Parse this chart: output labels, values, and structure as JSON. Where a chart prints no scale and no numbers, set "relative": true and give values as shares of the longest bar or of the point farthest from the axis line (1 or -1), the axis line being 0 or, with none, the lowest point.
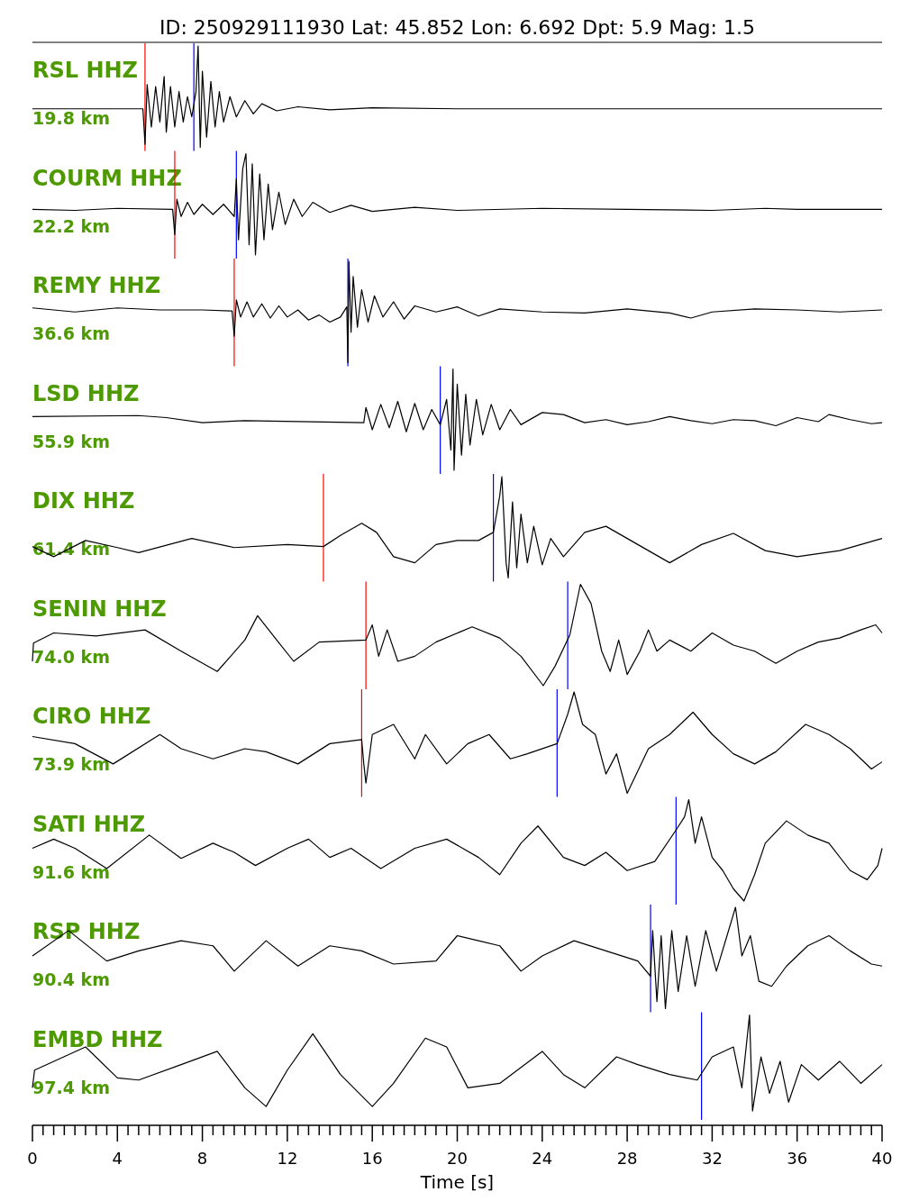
{
  "chart_data": [
    {
      "type": "line",
      "title": "ID: 250929111930 Lat:  45.852 Lon:   6.692 Dpt:     5.9 Mag:   1.5",
      "relative": true,
      "xlim": [
        0,
        40
      ],
      "annotations": [
        "19.8 km"
      ],
      "ref_lines": [
        {
          "axis": "x",
          "value": 5.3,
          "color": "#ff0000"
        },
        {
          "axis": "x",
          "value": 7.6,
          "color": "#0000ff"
        }
      ],
      "series": [
        {
          "name": "RSL HHZ",
          "color": "#000000",
          "x": [
            0,
            5.2,
            5.3,
            5.4,
            5.6,
            5.8,
            6.0,
            6.2,
            6.3,
            6.5,
            6.7,
            6.9,
            7.1,
            7.3,
            7.5,
            7.7,
            7.8,
            7.9,
            8.0,
            8.2,
            8.4,
            8.6,
            8.8,
            9.0,
            9.3,
            9.6,
            10.0,
            10.4,
            10.8,
            11.5,
            12.5,
            14,
            16,
            20,
            40
          ],
          "values": [
            0.38,
            0.38,
            0.03,
            0.62,
            0.2,
            0.6,
            0.25,
            0.7,
            0.15,
            0.6,
            0.2,
            0.55,
            0.25,
            0.5,
            0.3,
            0.55,
            1.0,
            0.0,
            0.75,
            0.1,
            0.65,
            0.2,
            0.55,
            0.25,
            0.5,
            0.3,
            0.46,
            0.33,
            0.43,
            0.36,
            0.4,
            0.37,
            0.39,
            0.38,
            0.38
          ]
        }
      ]
    },
    {
      "type": "line",
      "relative": true,
      "xlim": [
        0,
        40
      ],
      "annotations": [
        "22.2 km"
      ],
      "ref_lines": [
        {
          "axis": "x",
          "value": 6.7,
          "color": "#ff0000"
        },
        {
          "axis": "x",
          "value": 9.6,
          "color": "#0000ff"
        }
      ],
      "series": [
        {
          "name": "COURM HHZ",
          "color": "#000000",
          "x": [
            0,
            2,
            4,
            6.6,
            6.7,
            6.8,
            7.0,
            7.3,
            7.6,
            8.0,
            8.5,
            9.0,
            9.5,
            9.6,
            9.7,
            9.9,
            10.05,
            10.2,
            10.35,
            10.5,
            10.7,
            10.9,
            11.1,
            11.3,
            11.6,
            11.9,
            12.3,
            12.7,
            13.2,
            14,
            15,
            16,
            18,
            20,
            24,
            28,
            32,
            34.5,
            36,
            40
          ],
          "values": [
            0.45,
            0.44,
            0.46,
            0.45,
            0.2,
            0.55,
            0.38,
            0.52,
            0.4,
            0.5,
            0.4,
            0.5,
            0.38,
            0.75,
            0.15,
            0.85,
            1.0,
            0.1,
            0.9,
            0.0,
            0.8,
            0.15,
            0.7,
            0.25,
            0.62,
            0.3,
            0.55,
            0.38,
            0.52,
            0.42,
            0.49,
            0.43,
            0.47,
            0.44,
            0.46,
            0.45,
            0.44,
            0.46,
            0.45,
            0.45
          ]
        }
      ]
    },
    {
      "type": "line",
      "relative": true,
      "xlim": [
        0,
        40
      ],
      "annotations": [
        "36.6 km"
      ],
      "ref_lines": [
        {
          "axis": "x",
          "value": 9.5,
          "color": "#ff0000"
        },
        {
          "axis": "x",
          "value": 14.85,
          "color": "#0000ff"
        }
      ],
      "series": [
        {
          "name": "REMY HHZ",
          "color": "#000000",
          "x": [
            0,
            2,
            4,
            6,
            8,
            9.4,
            9.5,
            9.6,
            9.8,
            10.1,
            10.4,
            10.8,
            11.2,
            11.6,
            12,
            12.5,
            13,
            13.5,
            14,
            14.5,
            14.8,
            14.85,
            14.9,
            15.0,
            15.1,
            15.3,
            15.5,
            15.8,
            16.1,
            16.5,
            17,
            17.5,
            18,
            19,
            20,
            21,
            22,
            24,
            26,
            28,
            30,
            31,
            32,
            34,
            36,
            38,
            40
          ],
          "values": [
            0.54,
            0.5,
            0.54,
            0.52,
            0.52,
            0.51,
            0.26,
            0.62,
            0.45,
            0.6,
            0.45,
            0.58,
            0.44,
            0.56,
            0.45,
            0.52,
            0.42,
            0.47,
            0.4,
            0.45,
            0.55,
            0.0,
            1.0,
            0.3,
            0.85,
            0.35,
            0.72,
            0.4,
            0.66,
            0.45,
            0.6,
            0.43,
            0.56,
            0.5,
            0.55,
            0.46,
            0.53,
            0.5,
            0.49,
            0.53,
            0.49,
            0.44,
            0.5,
            0.53,
            0.52,
            0.5,
            0.52
          ]
        }
      ]
    },
    {
      "type": "line",
      "relative": true,
      "xlim": [
        0,
        40
      ],
      "annotations": [
        "55.9 km"
      ],
      "ref_lines": [
        {
          "axis": "x",
          "value": 19.2,
          "color": "#0000ff"
        }
      ],
      "series": [
        {
          "name": "LSD HHZ",
          "color": "#000000",
          "x": [
            0,
            5,
            6.3,
            8,
            10,
            15.6,
            15.7,
            16,
            16.4,
            16.8,
            17.2,
            17.6,
            18,
            18.4,
            18.8,
            19.2,
            19.5,
            19.7,
            19.8,
            19.85,
            20,
            20.2,
            20.4,
            20.6,
            20.9,
            21.2,
            21.6,
            22,
            22.5,
            23,
            24,
            25,
            26,
            27,
            28,
            29,
            30,
            31,
            32,
            33,
            34,
            35,
            36,
            37,
            37.5,
            38.5,
            39.5,
            40
          ],
          "values": [
            0.53,
            0.54,
            0.52,
            0.47,
            0.49,
            0.47,
            0.62,
            0.4,
            0.65,
            0.42,
            0.68,
            0.38,
            0.66,
            0.4,
            0.6,
            0.45,
            0.7,
            0.2,
            1.0,
            0.0,
            0.85,
            0.15,
            0.75,
            0.25,
            0.7,
            0.35,
            0.65,
            0.4,
            0.6,
            0.45,
            0.57,
            0.55,
            0.47,
            0.5,
            0.45,
            0.48,
            0.53,
            0.49,
            0.46,
            0.5,
            0.49,
            0.44,
            0.52,
            0.48,
            0.55,
            0.5,
            0.46,
            0.47
          ]
        }
      ]
    },
    {
      "type": "line",
      "relative": true,
      "xlim": [
        0,
        40
      ],
      "annotations": [
        "61.4 km"
      ],
      "ref_lines": [
        {
          "axis": "x",
          "value": 13.7,
          "color": "#ff0000"
        },
        {
          "axis": "x",
          "value": 21.7,
          "color": "#0000ff"
        }
      ],
      "series": [
        {
          "name": "DIX HHZ",
          "color": "#000000",
          "x": [
            0,
            1,
            2.5,
            4,
            5,
            7.5,
            9.5,
            12,
            13.7,
            14.5,
            15.5,
            16.2,
            17,
            18,
            19,
            20,
            21,
            21.7,
            21.8,
            22.0,
            22.1,
            22.3,
            22.4,
            22.6,
            22.8,
            23.0,
            23.3,
            23.6,
            24,
            24.4,
            25,
            26,
            27,
            28.5,
            30,
            31.5,
            33,
            34.5,
            36,
            38,
            40
          ],
          "values": [
            0.31,
            0.21,
            0.37,
            0.3,
            0.25,
            0.39,
            0.3,
            0.33,
            0.31,
            0.42,
            0.54,
            0.45,
            0.21,
            0.15,
            0.33,
            0.37,
            0.37,
            0.45,
            0.57,
            0.81,
            1.0,
            0.15,
            0.0,
            0.75,
            0.1,
            0.63,
            0.15,
            0.51,
            0.13,
            0.39,
            0.21,
            0.45,
            0.51,
            0.33,
            0.15,
            0.33,
            0.44,
            0.27,
            0.21,
            0.27,
            0.39
          ]
        }
      ]
    },
    {
      "type": "line",
      "relative": true,
      "xlim": [
        0,
        40
      ],
      "annotations": [
        "74.0 km"
      ],
      "ref_lines": [
        {
          "axis": "x",
          "value": 15.7,
          "color": "#ff0000"
        },
        {
          "axis": "x",
          "value": 25.2,
          "color": "#0000ff"
        }
      ],
      "series": [
        {
          "name": "SENIN HHZ",
          "color": "#000000",
          "x": [
            0,
            0.05,
            1,
            3,
            5.3,
            7,
            8.7,
            10,
            10.6,
            11.5,
            12.3,
            13.5,
            15.7,
            16,
            16.3,
            16.7,
            17.2,
            18,
            19,
            20.7,
            22,
            23,
            24.05,
            24.6,
            25.3,
            25.8,
            26.3,
            26.8,
            27.2,
            27.6,
            28,
            28.6,
            29,
            29.4,
            30,
            31,
            32,
            33,
            34,
            35,
            36,
            37,
            38,
            39,
            39.7,
            40
          ],
          "values": [
            0.24,
            0.42,
            0.52,
            0.49,
            0.55,
            0.34,
            0.14,
            0.45,
            0.69,
            0.45,
            0.24,
            0.43,
            0.45,
            0.6,
            0.29,
            0.55,
            0.24,
            0.29,
            0.43,
            0.58,
            0.47,
            0.29,
            0.0,
            0.19,
            0.5,
            1.0,
            0.81,
            0.34,
            0.14,
            0.45,
            0.11,
            0.34,
            0.55,
            0.34,
            0.45,
            0.34,
            0.52,
            0.4,
            0.34,
            0.22,
            0.34,
            0.43,
            0.47,
            0.55,
            0.6,
            0.52
          ]
        }
      ]
    },
    {
      "type": "line",
      "relative": true,
      "xlim": [
        0,
        40
      ],
      "annotations": [
        "73.9 km"
      ],
      "ref_lines": [
        {
          "axis": "x",
          "value": 15.5,
          "color": "#ff0000"
        },
        {
          "axis": "x",
          "value": 24.7,
          "color": "#0000ff"
        }
      ],
      "series": [
        {
          "name": "CIRO HHZ",
          "color": "#000000",
          "x": [
            0,
            2,
            3.8,
            6,
            7,
            8.5,
            10,
            11,
            12.5,
            14,
            15.5,
            15.6,
            15.7,
            16,
            17,
            18,
            18.5,
            19.5,
            20.5,
            21.5,
            22.5,
            23.3,
            24.7,
            25.2,
            25.5,
            25.9,
            26.5,
            27,
            27.5,
            28.0,
            29,
            30,
            31.1,
            32,
            33,
            34,
            35,
            36.4,
            37.5,
            38.5,
            39.5,
            40
          ],
          "values": [
            0.56,
            0.49,
            0.29,
            0.58,
            0.44,
            0.34,
            0.44,
            0.41,
            0.29,
            0.49,
            0.53,
            0.29,
            0.1,
            0.58,
            0.68,
            0.34,
            0.58,
            0.29,
            0.49,
            0.58,
            0.34,
            0.39,
            0.49,
            0.78,
            1.0,
            0.68,
            0.58,
            0.19,
            0.39,
            0.0,
            0.44,
            0.58,
            0.8,
            0.58,
            0.39,
            0.29,
            0.41,
            0.68,
            0.58,
            0.44,
            0.24,
            0.31
          ]
        }
      ]
    },
    {
      "type": "line",
      "relative": true,
      "xlim": [
        0,
        40
      ],
      "annotations": [
        "91.6 km"
      ],
      "ref_lines": [
        {
          "axis": "x",
          "value": 30.3,
          "color": "#0000ff"
        }
      ],
      "series": [
        {
          "name": "SATI HHZ",
          "color": "#000000",
          "x": [
            0,
            1,
            2,
            3.5,
            5.5,
            7,
            8.5,
            9.5,
            10.5,
            12,
            13,
            14,
            15,
            16.4,
            18,
            19.5,
            21,
            22,
            23,
            23.8,
            25,
            26,
            27,
            28,
            29.3,
            30.3,
            30.7,
            30.9,
            31.2,
            31.5,
            32,
            32.5,
            33,
            33.5,
            34,
            34.5,
            35.5,
            36.5,
            37.5,
            38.5,
            39.3,
            39.8,
            40
          ],
          "values": [
            0.52,
            0.61,
            0.52,
            0.32,
            0.65,
            0.42,
            0.57,
            0.48,
            0.35,
            0.52,
            0.61,
            0.43,
            0.52,
            0.32,
            0.52,
            0.61,
            0.43,
            0.26,
            0.57,
            0.74,
            0.43,
            0.35,
            0.48,
            0.3,
            0.39,
            0.7,
            0.83,
            1.0,
            0.57,
            0.83,
            0.43,
            0.3,
            0.12,
            0.0,
            0.26,
            0.57,
            0.79,
            0.65,
            0.57,
            0.3,
            0.21,
            0.35,
            0.52
          ]
        }
      ]
    },
    {
      "type": "line",
      "relative": true,
      "xlim": [
        0,
        40
      ],
      "annotations": [
        "90.4 km"
      ],
      "ref_lines": [
        {
          "axis": "x",
          "value": 29.1,
          "color": "#0000ff"
        }
      ],
      "series": [
        {
          "name": "RSP HHZ",
          "color": "#000000",
          "x": [
            0,
            1.7,
            3.5,
            5,
            7,
            8.5,
            9.5,
            11,
            12.5,
            14,
            15.5,
            17,
            19,
            20,
            21,
            22,
            23,
            24,
            25.5,
            27,
            28.5,
            29.1,
            29.2,
            29.4,
            29.6,
            29.8,
            30.1,
            30.4,
            30.8,
            31.2,
            31.7,
            32.2,
            32.7,
            33.1,
            33.4,
            33.8,
            34.2,
            34.8,
            35.5,
            36.5,
            37.5,
            38.5,
            39.5,
            40
          ],
          "values": [
            0.52,
            0.77,
            0.47,
            0.57,
            0.67,
            0.62,
            0.37,
            0.67,
            0.42,
            0.62,
            0.57,
            0.44,
            0.47,
            0.72,
            0.67,
            0.62,
            0.37,
            0.52,
            0.67,
            0.57,
            0.47,
            0.32,
            0.77,
            0.07,
            0.72,
            0.0,
            0.77,
            0.17,
            0.72,
            0.22,
            0.77,
            0.37,
            0.72,
            1.0,
            0.52,
            0.72,
            0.27,
            0.22,
            0.42,
            0.62,
            0.72,
            0.57,
            0.44,
            0.42
          ]
        }
      ]
    },
    {
      "type": "line",
      "relative": true,
      "xlim": [
        0,
        40
      ],
      "xlabel": "Time [s]",
      "annotations": [
        "97.4 km"
      ],
      "xticks": [
        0,
        {
          "value": 0.5,
          "label": null
        },
        {
          "value": 1,
          "label": null
        },
        {
          "value": 1.5,
          "label": null
        },
        {
          "value": 2,
          "label": null
        },
        {
          "value": 2.5,
          "label": null
        },
        {
          "value": 3,
          "label": null
        },
        {
          "value": 3.5,
          "label": null
        },
        4,
        {
          "value": 4.5,
          "label": null
        },
        {
          "value": 5,
          "label": null
        },
        {
          "value": 5.5,
          "label": null
        },
        {
          "value": 6,
          "label": null
        },
        {
          "value": 6.5,
          "label": null
        },
        {
          "value": 7,
          "label": null
        },
        {
          "value": 7.5,
          "label": null
        },
        8,
        {
          "value": 8.5,
          "label": null
        },
        {
          "value": 9,
          "label": null
        },
        {
          "value": 9.5,
          "label": null
        },
        {
          "value": 10,
          "label": null
        },
        {
          "value": 10.5,
          "label": null
        },
        {
          "value": 11,
          "label": null
        },
        {
          "value": 11.5,
          "label": null
        },
        12,
        {
          "value": 12.5,
          "label": null
        },
        {
          "value": 13,
          "label": null
        },
        {
          "value": 13.5,
          "label": null
        },
        {
          "value": 14,
          "label": null
        },
        {
          "value": 14.5,
          "label": null
        },
        {
          "value": 15,
          "label": null
        },
        {
          "value": 15.5,
          "label": null
        },
        16,
        {
          "value": 16.5,
          "label": null
        },
        {
          "value": 17,
          "label": null
        },
        {
          "value": 17.5,
          "label": null
        },
        {
          "value": 18,
          "label": null
        },
        {
          "value": 18.5,
          "label": null
        },
        {
          "value": 19,
          "label": null
        },
        {
          "value": 19.5,
          "label": null
        },
        20,
        {
          "value": 20.5,
          "label": null
        },
        {
          "value": 21,
          "label": null
        },
        {
          "value": 21.5,
          "label": null
        },
        {
          "value": 22,
          "label": null
        },
        {
          "value": 22.5,
          "label": null
        },
        {
          "value": 23,
          "label": null
        },
        {
          "value": 23.5,
          "label": null
        },
        24,
        {
          "value": 24.5,
          "label": null
        },
        {
          "value": 25,
          "label": null
        },
        {
          "value": 25.5,
          "label": null
        },
        {
          "value": 26,
          "label": null
        },
        {
          "value": 26.5,
          "label": null
        },
        {
          "value": 27,
          "label": null
        },
        {
          "value": 27.5,
          "label": null
        },
        28,
        {
          "value": 28.5,
          "label": null
        },
        {
          "value": 29,
          "label": null
        },
        {
          "value": 29.5,
          "label": null
        },
        {
          "value": 30,
          "label": null
        },
        {
          "value": 30.5,
          "label": null
        },
        {
          "value": 31,
          "label": null
        },
        {
          "value": 31.5,
          "label": null
        },
        32,
        {
          "value": 32.5,
          "label": null
        },
        {
          "value": 33,
          "label": null
        },
        {
          "value": 33.5,
          "label": null
        },
        {
          "value": 34,
          "label": null
        },
        {
          "value": 34.5,
          "label": null
        },
        {
          "value": 35,
          "label": null
        },
        {
          "value": 35.5,
          "label": null
        },
        36,
        {
          "value": 36.5,
          "label": null
        },
        {
          "value": 37,
          "label": null
        },
        {
          "value": 37.5,
          "label": null
        },
        {
          "value": 38,
          "label": null
        },
        {
          "value": 38.5,
          "label": null
        },
        {
          "value": 39,
          "label": null
        },
        {
          "value": 39.5,
          "label": null
        },
        40
      ],
      "ref_lines": [
        {
          "axis": "x",
          "value": 31.5,
          "color": "#0000ff"
        }
      ],
      "series": [
        {
          "name": "EMBD HHZ",
          "color": "#000000",
          "x": [
            0,
            0.1,
            2.5,
            4,
            5,
            7,
            8.7,
            10,
            11,
            12,
            13.2,
            14.5,
            16,
            17,
            18.5,
            19.5,
            20.5,
            22,
            24,
            25,
            26,
            27.5,
            28.5,
            30,
            31.3,
            32,
            33,
            33.4,
            33.76,
            33.9,
            34.3,
            34.7,
            35.2,
            35.6,
            36.2,
            37,
            38,
            39,
            40
          ],
          "values": [
            0.34,
            0.5,
            0.71,
            0.43,
            0.41,
            0.55,
            0.67,
            0.34,
            0.17,
            0.5,
            0.83,
            0.46,
            0.17,
            0.38,
            0.79,
            0.71,
            0.34,
            0.38,
            0.67,
            0.46,
            0.34,
            0.62,
            0.55,
            0.46,
            0.41,
            0.62,
            0.71,
            0.34,
            1.0,
            0.13,
            0.62,
            0.29,
            0.58,
            0.21,
            0.55,
            0.41,
            0.58,
            0.38,
            0.55
          ]
        }
      ]
    }
  ]
}
